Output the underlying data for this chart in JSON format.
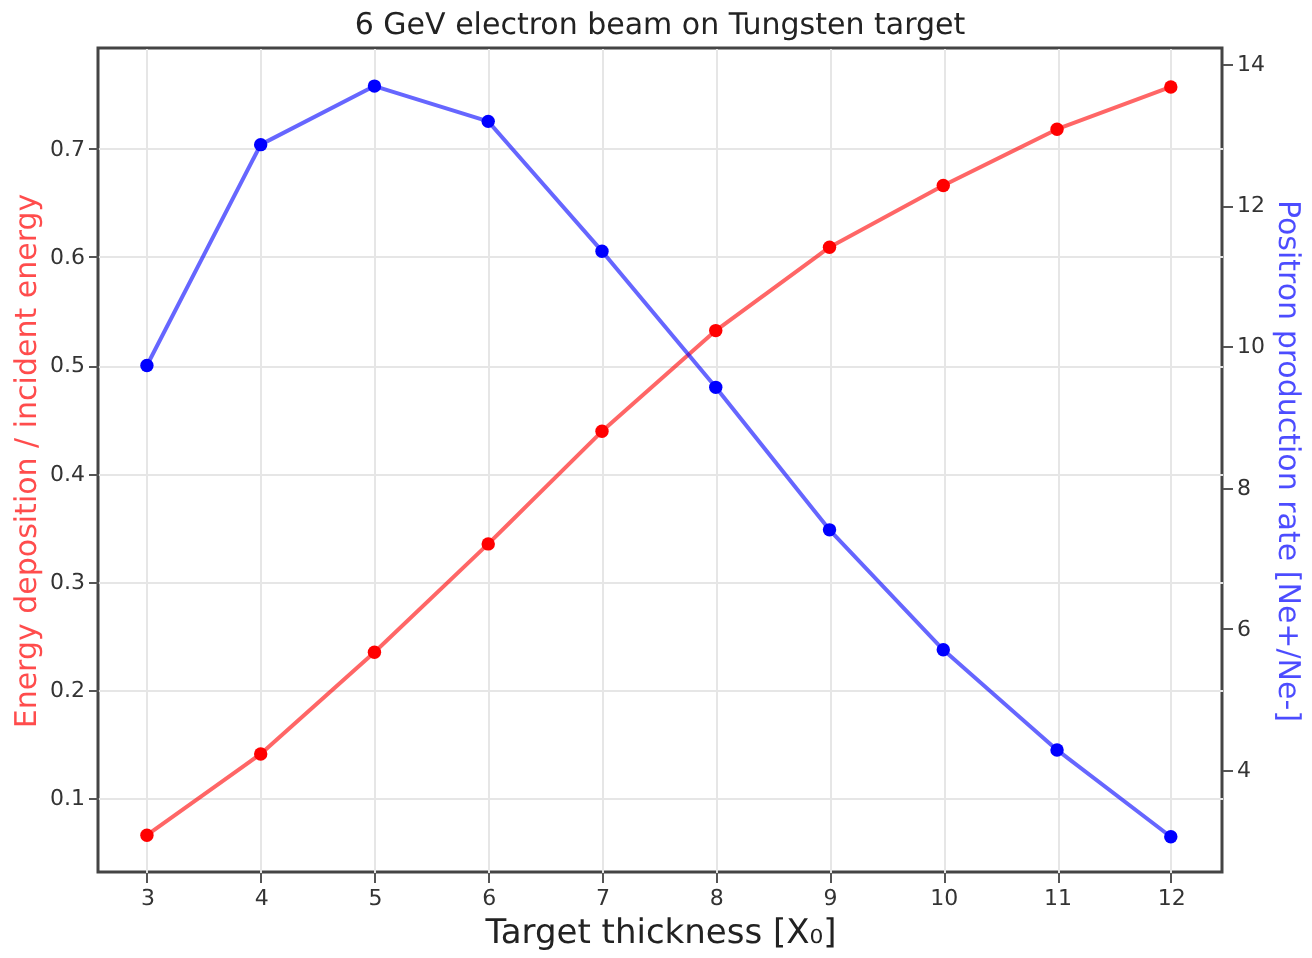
{
  "chart_data": {
    "type": "line",
    "title": "6 GeV electron beam on Tungsten target",
    "xlabel": "Target thickness [X₀]",
    "ylabel": "Energy deposition / incident energy",
    "y2label": "Positron production rate [Ne+/Ne-]",
    "x": [
      3,
      4,
      5,
      6,
      7,
      8,
      9,
      10,
      11,
      12
    ],
    "series": [
      {
        "color": "#ff0000",
        "values": [
          0.066,
          0.141,
          0.235,
          0.335,
          0.439,
          0.532,
          0.609,
          0.666,
          0.718,
          0.757
        ]
      },
      {
        "color": "#0000ff",
        "axis": "y2",
        "values": [
          9.73,
          12.86,
          13.69,
          13.19,
          11.35,
          9.42,
          7.4,
          5.7,
          4.28,
          3.05
        ]
      }
    ],
    "xlim": [
      2.57,
      12.45
    ],
    "xticks": [
      3,
      4,
      5,
      6,
      7,
      8,
      9,
      10,
      11,
      12
    ],
    "ylim": [
      0.032,
      0.793
    ],
    "yticks": [
      0.1,
      0.2,
      0.3,
      0.4,
      0.5,
      0.6,
      0.7
    ],
    "y2lim": [
      2.55,
      14.23
    ],
    "y2ticks": [
      4,
      6,
      8,
      10,
      12,
      14
    ],
    "grid": true,
    "marker": "circle",
    "line_style": "solid"
  }
}
